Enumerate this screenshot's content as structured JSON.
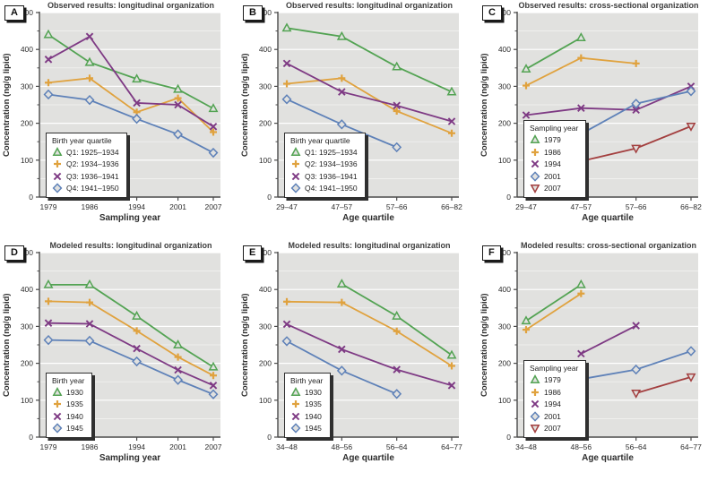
{
  "figure": {
    "ylabel_shared": "Concentration (ng/g lipid)",
    "colors": {
      "green": "#53a353",
      "orange": "#e0a23e",
      "purple": "#7e3a84",
      "blue": "#5e81b8",
      "red": "#a33f3f",
      "plot_bg": "#e1e1df",
      "grid": "#ffffff",
      "axis": "#4a4a4a",
      "text": "#2e2e2e"
    }
  },
  "chart_data": [
    {
      "type": "line",
      "tag": "A",
      "title": "Observed results: longitudinal organization",
      "xlabel": "Sampling year",
      "ylabel": "Concentration (ng/g lipid)",
      "ylim": [
        0,
        500
      ],
      "yticks": [
        0,
        100,
        200,
        300,
        400,
        500
      ],
      "categories": [
        "1979",
        "1986",
        "1994",
        "2001",
        "2007"
      ],
      "x_numeric": [
        1979,
        1986,
        1994,
        2001,
        2007
      ],
      "legend_title": "Birth year quartile",
      "legend_position": "bottom-left",
      "series": [
        {
          "name": "Q1: 1925–1934",
          "marker": "triangle-up",
          "color": "green",
          "values": [
            440,
            365,
            320,
            292,
            240
          ]
        },
        {
          "name": "Q2: 1934–1936",
          "marker": "plus",
          "color": "orange",
          "values": [
            310,
            322,
            230,
            268,
            176
          ]
        },
        {
          "name": "Q3: 1936–1941",
          "marker": "x",
          "color": "purple",
          "values": [
            373,
            435,
            255,
            250,
            191
          ]
        },
        {
          "name": "Q4: 1941–1950",
          "marker": "diamond",
          "color": "blue",
          "values": [
            278,
            263,
            212,
            170,
            120
          ]
        }
      ]
    },
    {
      "type": "line",
      "tag": "B",
      "title": "Observed results: longitudinal organization",
      "xlabel": "Age quartile",
      "ylabel": "Concentration (ng/g lipid)",
      "ylim": [
        0,
        500
      ],
      "yticks": [
        0,
        100,
        200,
        300,
        400,
        500
      ],
      "categories": [
        "29–47",
        "47–57",
        "57–66",
        "66–82"
      ],
      "legend_title": "Birth year quartile",
      "legend_position": "bottom-left",
      "series": [
        {
          "name": "Q1: 1925–1934",
          "marker": "triangle-up",
          "color": "green",
          "values": [
            458,
            435,
            353,
            285
          ]
        },
        {
          "name": "Q2: 1934–1936",
          "marker": "plus",
          "color": "orange",
          "values": [
            307,
            322,
            233,
            173
          ]
        },
        {
          "name": "Q3: 1936–1941",
          "marker": "x",
          "color": "purple",
          "values": [
            362,
            285,
            248,
            205
          ]
        },
        {
          "name": "Q4: 1941–1950",
          "marker": "diamond",
          "color": "blue",
          "values": [
            265,
            197,
            135,
            null
          ]
        }
      ]
    },
    {
      "type": "line",
      "tag": "C",
      "title": "Observed results: cross-sectional organization",
      "xlabel": "Age quartile",
      "ylabel": "Concentration (ng/g lipid)",
      "ylim": [
        0,
        500
      ],
      "yticks": [
        0,
        100,
        200,
        300,
        400,
        500
      ],
      "categories": [
        "29–47",
        "47–57",
        "57–66",
        "66–82"
      ],
      "legend_title": "Sampling year",
      "legend_position": "bottom-left",
      "series": [
        {
          "name": "1979",
          "marker": "triangle-up",
          "color": "green",
          "values": [
            347,
            432,
            null,
            null
          ]
        },
        {
          "name": "1986",
          "marker": "plus",
          "color": "orange",
          "values": [
            302,
            377,
            362,
            null
          ]
        },
        {
          "name": "1994",
          "marker": "x",
          "color": "purple",
          "values": [
            222,
            241,
            236,
            300
          ]
        },
        {
          "name": "2001",
          "marker": "diamond",
          "color": "blue",
          "values": [
            null,
            171,
            253,
            287
          ]
        },
        {
          "name": "2007",
          "marker": "triangle-down",
          "color": "red",
          "values": [
            null,
            97,
            132,
            192
          ]
        }
      ]
    },
    {
      "type": "line",
      "tag": "D",
      "title": "Modeled results: longitudinal organization",
      "xlabel": "Sampling year",
      "ylabel": "Concentration (ng/g lipid)",
      "ylim": [
        0,
        500
      ],
      "yticks": [
        0,
        100,
        200,
        300,
        400,
        500
      ],
      "categories": [
        "1979",
        "1986",
        "1994",
        "2001",
        "2007"
      ],
      "x_numeric": [
        1979,
        1986,
        1994,
        2001,
        2007
      ],
      "legend_title": "Birth year",
      "legend_position": "bottom-left",
      "series": [
        {
          "name": "1930",
          "marker": "triangle-up",
          "color": "green",
          "values": [
            413,
            413,
            328,
            250,
            190
          ]
        },
        {
          "name": "1935",
          "marker": "plus",
          "color": "orange",
          "values": [
            368,
            365,
            288,
            217,
            167
          ]
        },
        {
          "name": "1940",
          "marker": "x",
          "color": "purple",
          "values": [
            309,
            307,
            240,
            182,
            140
          ]
        },
        {
          "name": "1945",
          "marker": "diamond",
          "color": "blue",
          "values": [
            263,
            261,
            205,
            155,
            116
          ]
        }
      ]
    },
    {
      "type": "line",
      "tag": "E",
      "title": "Modeled results: longitudinal organization",
      "xlabel": "Age quartile",
      "ylabel": "Concentration (ng/g lipid)",
      "ylim": [
        0,
        500
      ],
      "yticks": [
        0,
        100,
        200,
        300,
        400,
        500
      ],
      "categories": [
        "34–48",
        "48–56",
        "56–64",
        "64–77"
      ],
      "legend_title": "Birth year",
      "legend_position": "bottom-left",
      "series": [
        {
          "name": "1930",
          "marker": "triangle-up",
          "color": "green",
          "values": [
            null,
            415,
            328,
            222
          ]
        },
        {
          "name": "1935",
          "marker": "plus",
          "color": "orange",
          "values": [
            367,
            365,
            287,
            193
          ]
        },
        {
          "name": "1940",
          "marker": "x",
          "color": "purple",
          "values": [
            306,
            238,
            183,
            140
          ]
        },
        {
          "name": "1945",
          "marker": "diamond",
          "color": "blue",
          "values": [
            260,
            180,
            117,
            null
          ]
        }
      ]
    },
    {
      "type": "line",
      "tag": "F",
      "title": "Modeled results: cross-sectional organization",
      "xlabel": "Age quartile",
      "ylabel": "Concentration (ng/g lipid)",
      "ylim": [
        0,
        500
      ],
      "yticks": [
        0,
        100,
        200,
        300,
        400,
        500
      ],
      "categories": [
        "34–48",
        "48–56",
        "56–64",
        "64–77"
      ],
      "legend_title": "Sampling year",
      "legend_position": "bottom-left",
      "series": [
        {
          "name": "1979",
          "marker": "triangle-up",
          "color": "green",
          "values": [
            315,
            413,
            null,
            null
          ]
        },
        {
          "name": "1986",
          "marker": "plus",
          "color": "orange",
          "values": [
            291,
            389,
            null,
            null
          ]
        },
        {
          "name": "1994",
          "marker": "x",
          "color": "purple",
          "values": [
            null,
            226,
            302,
            null
          ]
        },
        {
          "name": "2001",
          "marker": "diamond",
          "color": "blue",
          "values": [
            null,
            157,
            183,
            233
          ]
        },
        {
          "name": "2007",
          "marker": "triangle-down",
          "color": "red",
          "values": [
            null,
            null,
            119,
            163
          ]
        }
      ]
    }
  ]
}
